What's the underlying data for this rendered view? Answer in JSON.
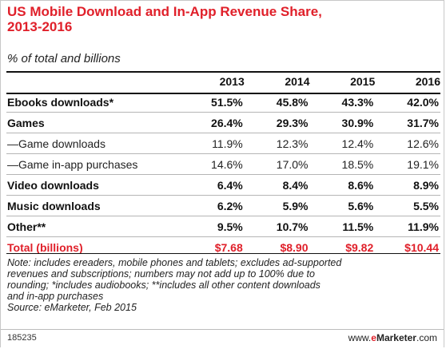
{
  "chart_data": {
    "type": "table",
    "title_line1": "US Mobile Download and In-App Revenue Share,",
    "title_line2": "2013-2016",
    "subtitle": "% of total and billions",
    "columns": [
      "2013",
      "2014",
      "2015",
      "2016"
    ],
    "rows": [
      {
        "label": "Ebooks downloads*",
        "values": [
          "51.5%",
          "45.8%",
          "43.3%",
          "42.0%"
        ],
        "style": "bold"
      },
      {
        "label": "Games",
        "values": [
          "26.4%",
          "29.3%",
          "30.9%",
          "31.7%"
        ],
        "style": "bold"
      },
      {
        "label": "—Game downloads",
        "values": [
          "11.9%",
          "12.3%",
          "12.4%",
          "12.6%"
        ],
        "style": "sub"
      },
      {
        "label": "—Game in-app purchases",
        "values": [
          "14.6%",
          "17.0%",
          "18.5%",
          "19.1%"
        ],
        "style": "sub"
      },
      {
        "label": "Video downloads",
        "values": [
          "6.4%",
          "8.4%",
          "8.6%",
          "8.9%"
        ],
        "style": "bold"
      },
      {
        "label": "Music downloads",
        "values": [
          "6.2%",
          "5.9%",
          "5.6%",
          "5.5%"
        ],
        "style": "bold"
      },
      {
        "label": "Other**",
        "values": [
          "9.5%",
          "10.7%",
          "11.5%",
          "11.9%"
        ],
        "style": "bold"
      },
      {
        "label": "Total (billions)",
        "values": [
          "$7.68",
          "$8.90",
          "$9.82",
          "$10.44"
        ],
        "style": "total"
      }
    ],
    "note_lines": [
      "Note: includes ereaders, mobile phones and tablets; excludes ad-supported",
      "revenues and subscriptions; numbers may not add up to 100% due to",
      "rounding; *includes audiobooks; **includes all other content downloads",
      "and in-app purchases",
      "Source: eMarketer, Feb 2015"
    ],
    "footer_id": "185235",
    "brand_prefix": "www.",
    "brand_e": "e",
    "brand_name": "Marketer",
    "brand_suffix": ".com",
    "accent_color": "#e0202a"
  }
}
